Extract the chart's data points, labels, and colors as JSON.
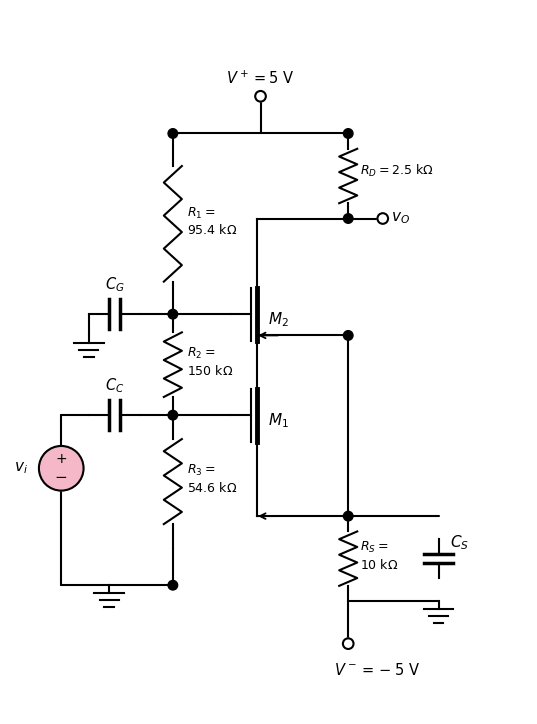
{
  "figsize": [
    5.37,
    7.24
  ],
  "dpi": 100,
  "bg_color": "#ffffff",
  "colors": {
    "line": "#000000",
    "source_fill": "#f4b8c8",
    "dot_fill": "#000000"
  },
  "labels": {
    "VDD": "$V^+ = 5\\ \\mathrm{V}$",
    "VSS": "$V^- = -5\\ \\mathrm{V}$",
    "R1": "$R_1 =$\n$95.4\\ \\mathrm{k\\Omega}$",
    "R2": "$R_2 =$\n$150\\ \\mathrm{k\\Omega}$",
    "R3": "$R_3 =$\n$54.6\\ \\mathrm{k\\Omega}$",
    "RD": "$R_D = 2.5\\ \\mathrm{k\\Omega}$",
    "RS": "$R_S =$\n$10\\ \\mathrm{k\\Omega}$",
    "CS": "$C_S$",
    "CG": "$C_G$",
    "CC": "$C_C$",
    "M1": "$M_1$",
    "M2": "$M_2$",
    "vi": "$v_i$",
    "vo": "$v_O$"
  }
}
